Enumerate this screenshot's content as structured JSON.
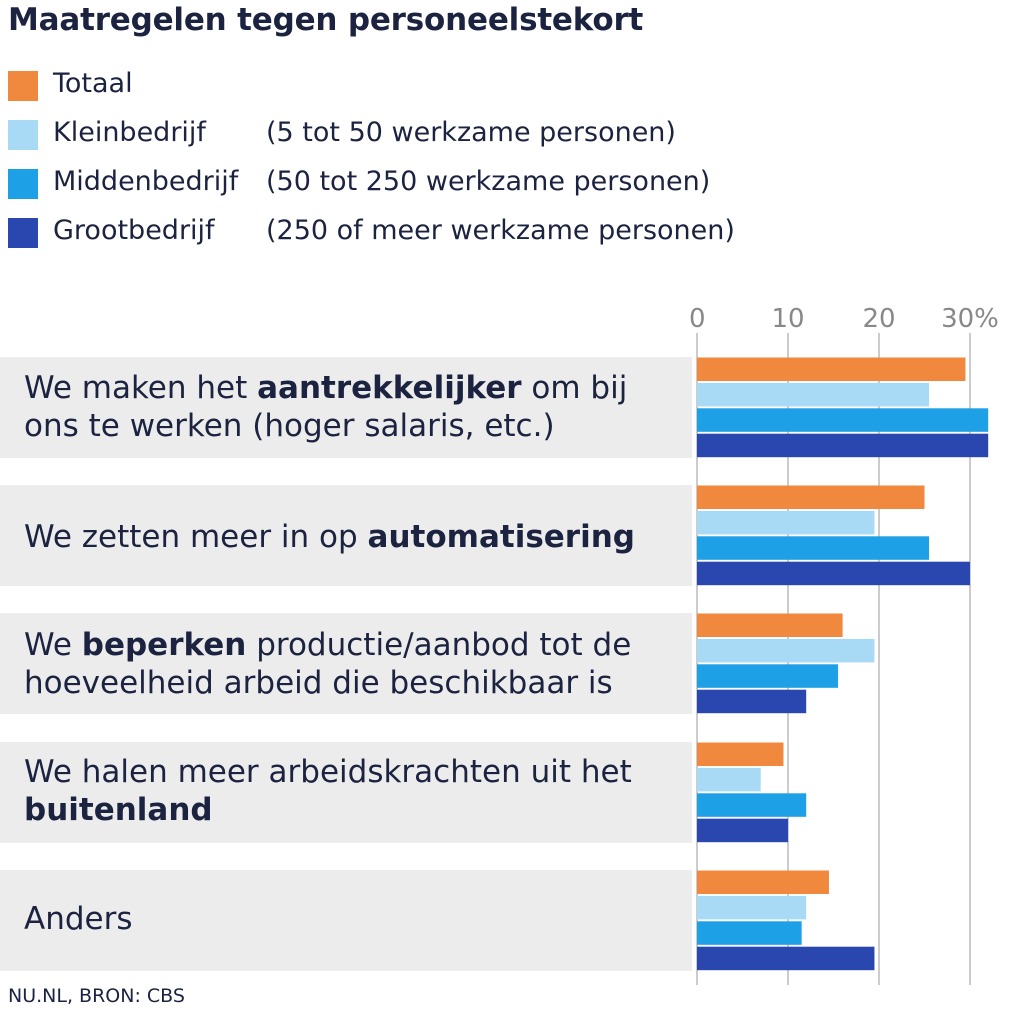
{
  "chart_data": {
    "type": "bar",
    "orientation": "horizontal",
    "title": "Maatregelen tegen personeelstekort",
    "categories": [
      {
        "pre": "We maken het ",
        "bold": "aantrekkelijker",
        "post": " om bij ons te werken (hoger salaris, etc.)"
      },
      {
        "pre": "We zetten meer in op ",
        "bold": "automatisering",
        "post": ""
      },
      {
        "pre": "We ",
        "bold": "beperken",
        "post": " productie/aanbod tot de hoeveelheid arbeid die beschikbaar is"
      },
      {
        "pre": "We halen meer arbeidskrachten uit het ",
        "bold": "buitenland",
        "post": ""
      },
      {
        "pre": "Anders",
        "bold": "",
        "post": ""
      }
    ],
    "series": [
      {
        "name": "Totaal",
        "description": "",
        "color": "#f0883e",
        "values": [
          29.5,
          25,
          16,
          9.5,
          14.5
        ]
      },
      {
        "name": "Kleinbedrijf",
        "description": "(5 tot 50 werkzame personen)",
        "color": "#a9daf5",
        "values": [
          25.5,
          19.5,
          19.5,
          7,
          12
        ]
      },
      {
        "name": "Middenbedrijf",
        "description": "(50 tot 250 werkzame personen)",
        "color": "#1ea0e6",
        "values": [
          32,
          25.5,
          15.5,
          12,
          11.5
        ]
      },
      {
        "name": "Grootbedrijf",
        "description": "(250 of meer werkzame personen)",
        "color": "#2a47b0",
        "values": [
          32,
          30,
          12,
          10,
          19.5
        ]
      }
    ],
    "xlim": [
      0,
      32
    ],
    "ticks": [
      "0",
      "10",
      "20",
      "30%"
    ],
    "tick_values": [
      0,
      10,
      20,
      30
    ],
    "grid": true,
    "legend_position": "top-left"
  },
  "source": "NU.NL, BRON: CBS",
  "colors": {
    "row_background": "#ececec",
    "grid": "#cccccc",
    "tick_text": "#888888",
    "text": "#1c2340"
  }
}
